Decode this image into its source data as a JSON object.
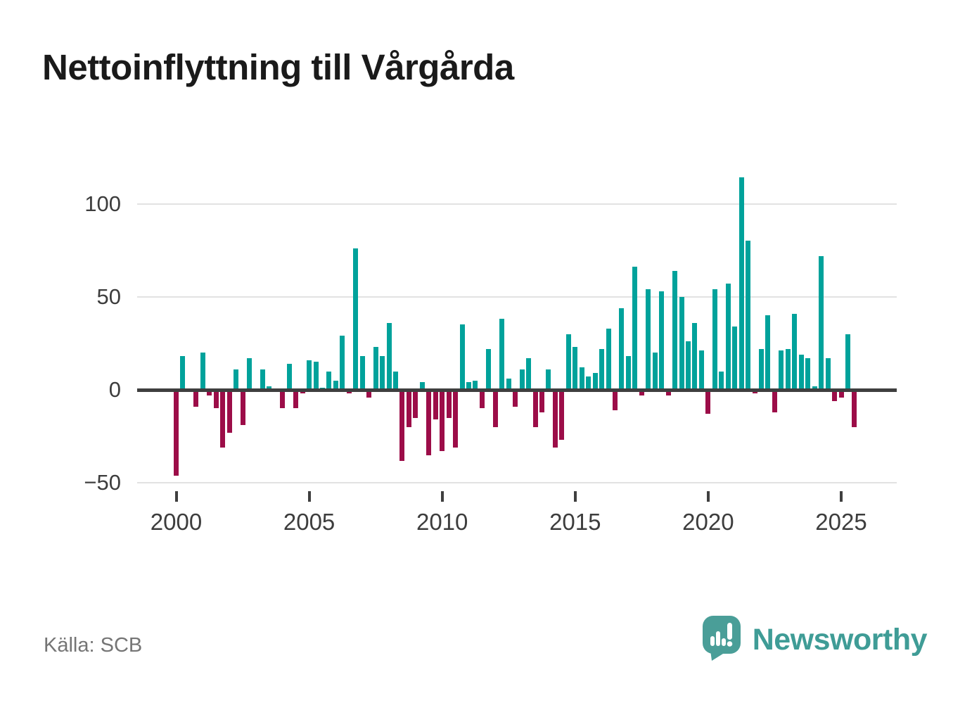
{
  "title": "Nettoinflyttning till Vårgårda",
  "source": "Källa: SCB",
  "branding": {
    "name": "Newsworthy",
    "logo_icon": "speech-bubble-bar-chart",
    "color": "#3f9c96"
  },
  "colors": {
    "positive_bar": "#00a29b",
    "negative_bar": "#9c0d48",
    "axis_line": "#3f3f3f",
    "gridline": "#e2e2e2",
    "title_text": "#1a1a1a",
    "tick_text": "#3d3d3d",
    "source_text": "#757575"
  },
  "chart_data": {
    "type": "bar",
    "title": "Nettoinflyttning till Vårgårda",
    "frequency": "quarterly",
    "xlabel": "",
    "ylabel": "",
    "ylim": [
      -50,
      115
    ],
    "yticks": [
      100,
      50,
      0,
      -50
    ],
    "xticks": [
      2000,
      2005,
      2010,
      2015,
      2020,
      2025
    ],
    "grid": "horizontal",
    "legend": "none",
    "data": [
      {
        "year": 2000,
        "values": [
          -46,
          18,
          0,
          -9
        ]
      },
      {
        "year": 2001,
        "values": [
          20,
          -3,
          -10,
          -31
        ]
      },
      {
        "year": 2002,
        "values": [
          -23,
          11,
          -19,
          17
        ]
      },
      {
        "year": 2003,
        "values": [
          0,
          11,
          2,
          0
        ]
      },
      {
        "year": 2004,
        "values": [
          -10,
          14,
          -10,
          -2
        ]
      },
      {
        "year": 2005,
        "values": [
          16,
          15,
          1,
          10
        ]
      },
      {
        "year": 2006,
        "values": [
          5,
          29,
          -2,
          76
        ]
      },
      {
        "year": 2007,
        "values": [
          18,
          -4,
          23,
          18
        ]
      },
      {
        "year": 2008,
        "values": [
          36,
          10,
          -38,
          -20
        ]
      },
      {
        "year": 2009,
        "values": [
          -15,
          4,
          -35,
          -16
        ]
      },
      {
        "year": 2010,
        "values": [
          -33,
          -15,
          -31,
          35
        ]
      },
      {
        "year": 2011,
        "values": [
          4,
          5,
          -10,
          22
        ]
      },
      {
        "year": 2012,
        "values": [
          -20,
          38,
          6,
          -9
        ]
      },
      {
        "year": 2013,
        "values": [
          11,
          17,
          -20,
          -12
        ]
      },
      {
        "year": 2014,
        "values": [
          11,
          -31,
          -27,
          30
        ]
      },
      {
        "year": 2015,
        "values": [
          23,
          12,
          7,
          9
        ]
      },
      {
        "year": 2016,
        "values": [
          22,
          33,
          -11,
          44
        ]
      },
      {
        "year": 2017,
        "values": [
          18,
          66,
          -3,
          54
        ]
      },
      {
        "year": 2018,
        "values": [
          20,
          53,
          -3,
          64
        ]
      },
      {
        "year": 2019,
        "values": [
          50,
          26,
          36,
          21
        ]
      },
      {
        "year": 2020,
        "values": [
          -13,
          54,
          10,
          57
        ]
      },
      {
        "year": 2021,
        "values": [
          34,
          114,
          80,
          -2
        ]
      },
      {
        "year": 2022,
        "values": [
          22,
          40,
          -12,
          21
        ]
      },
      {
        "year": 2023,
        "values": [
          22,
          41,
          19,
          17
        ]
      },
      {
        "year": 2024,
        "values": [
          2,
          72,
          17,
          -6
        ]
      },
      {
        "year": 2025,
        "values": [
          -4,
          30,
          -20
        ]
      }
    ]
  }
}
